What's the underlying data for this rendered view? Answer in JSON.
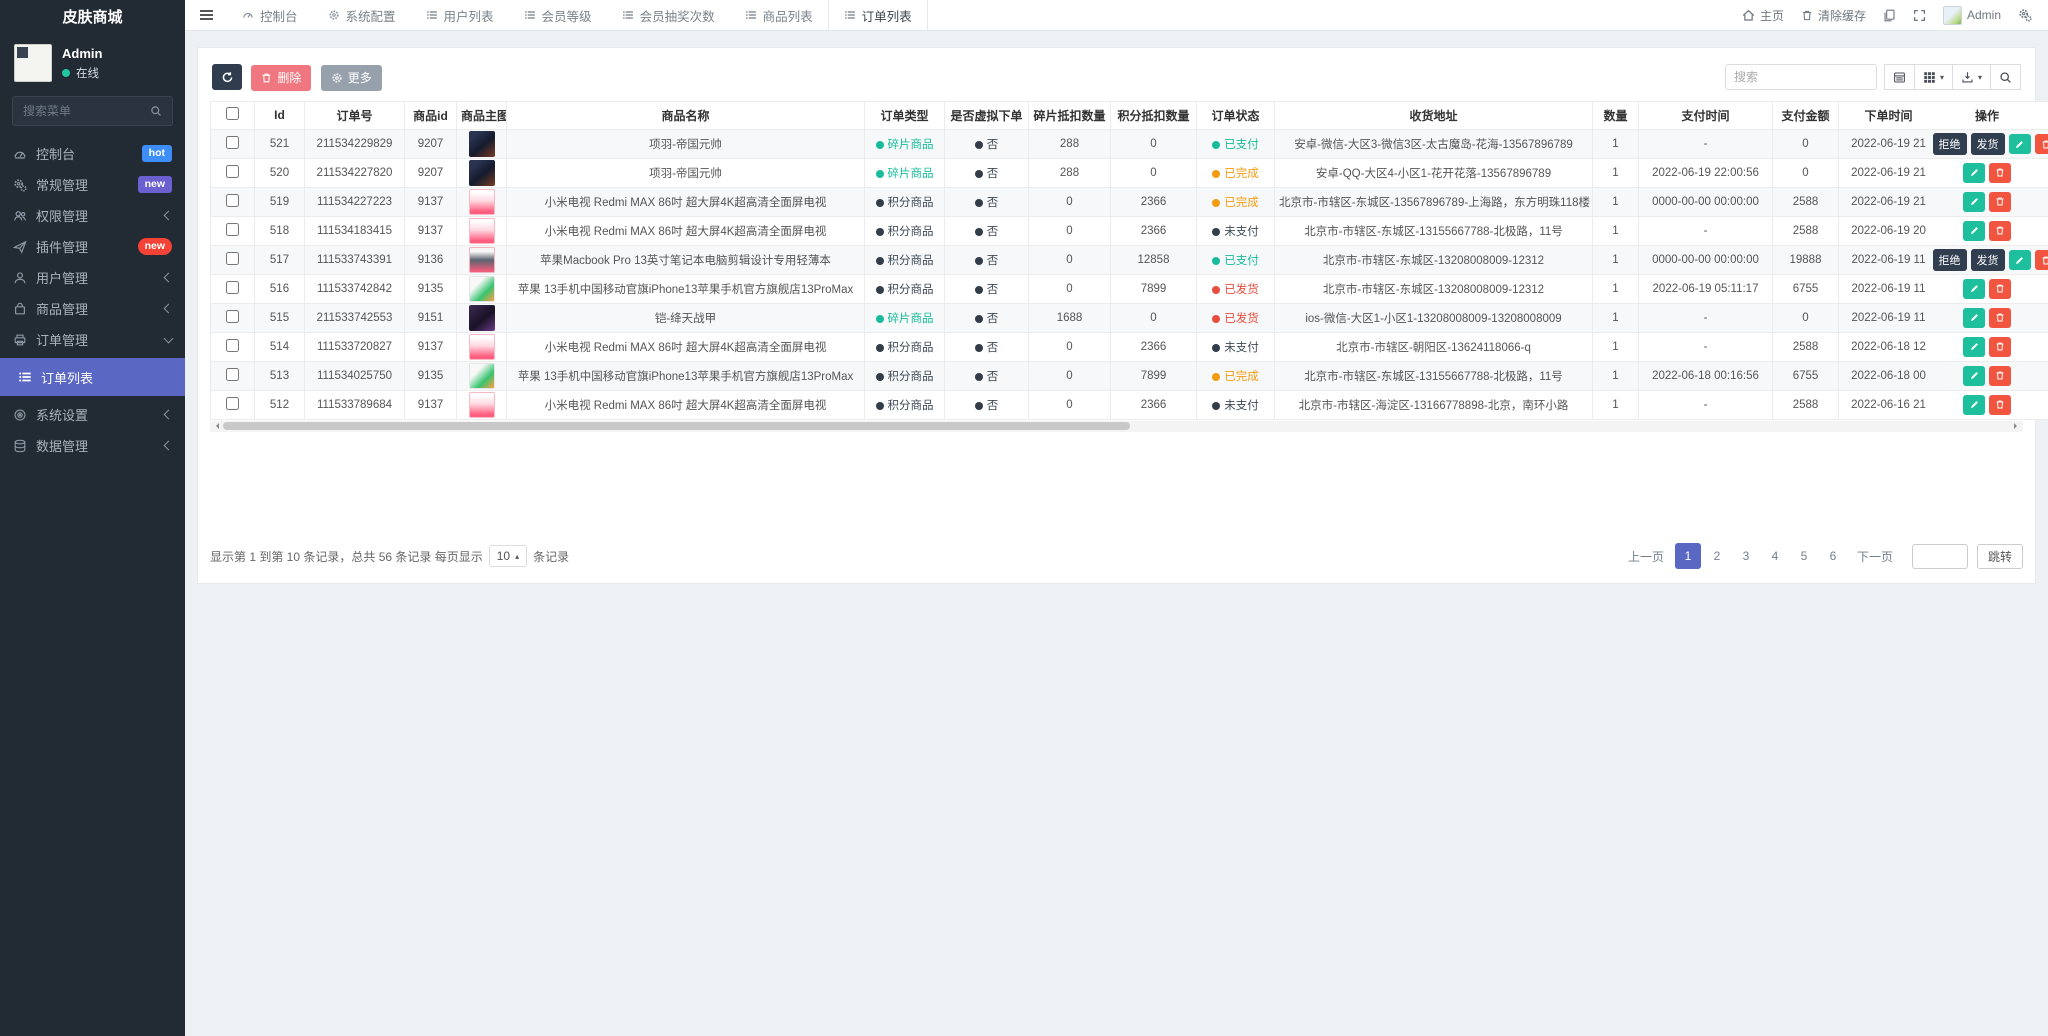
{
  "sidebar": {
    "brand": "皮肤商城",
    "user": {
      "name": "Admin",
      "status": "在线"
    },
    "search_placeholder": "搜索菜单",
    "items": [
      {
        "label": "控制台",
        "icon": "dashboard-icon",
        "badge": "hot"
      },
      {
        "label": "常规管理",
        "icon": "gears-icon",
        "badge": "new"
      },
      {
        "label": "权限管理",
        "icon": "users-icon"
      },
      {
        "label": "插件管理",
        "icon": "paper-plane-icon",
        "badge": "new"
      },
      {
        "label": "用户管理",
        "icon": "user-icon"
      },
      {
        "label": "商品管理",
        "icon": "bag-icon"
      },
      {
        "label": "订单管理",
        "icon": "printer-icon"
      },
      {
        "label": "订单列表",
        "icon": "list-icon",
        "active": true
      },
      {
        "label": "系统设置",
        "icon": "settings-icon"
      },
      {
        "label": "数据管理",
        "icon": "database-icon"
      }
    ]
  },
  "navbar": {
    "tabs": [
      {
        "label": "控制台"
      },
      {
        "label": "系统配置"
      },
      {
        "label": "用户列表"
      },
      {
        "label": "会员等级"
      },
      {
        "label": "会员抽奖次数"
      },
      {
        "label": "商品列表"
      },
      {
        "label": "订单列表",
        "active": true
      }
    ],
    "right": {
      "home": "主页",
      "clear_cache": "清除缓存",
      "username": "Admin"
    }
  },
  "toolbar": {
    "delete_label": "删除",
    "more_label": "更多",
    "search_placeholder": "搜索"
  },
  "table": {
    "headers": [
      "Id",
      "订单号",
      "商品id",
      "商品主图",
      "商品名称",
      "订单类型",
      "是否虚拟下单",
      "碎片抵扣数量",
      "积分抵扣数量",
      "订单状态",
      "收货地址",
      "数量",
      "支付时间",
      "支付金额",
      "下单时间",
      "操作"
    ],
    "op_labels": {
      "reject": "拒绝",
      "ship": "发货"
    },
    "rows": [
      {
        "id": "521",
        "order_no": "211534229829",
        "product_id": "9207",
        "img": "xiangyu",
        "name": "项羽-帝国元帅",
        "type": {
          "label": "碎片商品",
          "color": "green"
        },
        "virtual": {
          "label": "否",
          "color": "dark"
        },
        "frag": "288",
        "points": "0",
        "status": {
          "label": "已支付",
          "color": "green"
        },
        "address": "安卓-微信-大区3-微信3区-太古魔岛-花海-13567896789",
        "qty": "1",
        "pay_time": "-",
        "amount": "0",
        "order_time": "2022-06-19 21",
        "ops": [
          "reject",
          "ship",
          "edit",
          "delete"
        ]
      },
      {
        "id": "520",
        "order_no": "211534227820",
        "product_id": "9207",
        "img": "xiangyu",
        "name": "项羽-帝国元帅",
        "type": {
          "label": "碎片商品",
          "color": "green"
        },
        "virtual": {
          "label": "否",
          "color": "dark"
        },
        "frag": "288",
        "points": "0",
        "status": {
          "label": "已完成",
          "color": "orange"
        },
        "address": "安卓-QQ-大区4-小区1-花开花落-13567896789",
        "qty": "1",
        "pay_time": "2022-06-19 22:00:56",
        "amount": "0",
        "order_time": "2022-06-19 21",
        "ops": [
          "edit",
          "delete"
        ]
      },
      {
        "id": "519",
        "order_no": "111534227223",
        "product_id": "9137",
        "img": "tv",
        "name": "小米电视 Redmi MAX 86吋 超大屏4K超高清全面屏电视",
        "type": {
          "label": "积分商品",
          "color": "dark"
        },
        "virtual": {
          "label": "否",
          "color": "dark"
        },
        "frag": "0",
        "points": "2366",
        "status": {
          "label": "已完成",
          "color": "orange"
        },
        "address": "北京市-市辖区-东城区-13567896789-上海路，东方明珠118楼",
        "qty": "1",
        "pay_time": "0000-00-00 00:00:00",
        "amount": "2588",
        "order_time": "2022-06-19 21",
        "ops": [
          "edit",
          "delete"
        ]
      },
      {
        "id": "518",
        "order_no": "111534183415",
        "product_id": "9137",
        "img": "tv",
        "name": "小米电视 Redmi MAX 86吋 超大屏4K超高清全面屏电视",
        "type": {
          "label": "积分商品",
          "color": "dark"
        },
        "virtual": {
          "label": "否",
          "color": "dark"
        },
        "frag": "0",
        "points": "2366",
        "status": {
          "label": "未支付",
          "color": "dark"
        },
        "address": "北京市-市辖区-东城区-13155667788-北极路，11号",
        "qty": "1",
        "pay_time": "-",
        "amount": "2588",
        "order_time": "2022-06-19 20",
        "ops": [
          "edit",
          "delete"
        ]
      },
      {
        "id": "517",
        "order_no": "111533743391",
        "product_id": "9136",
        "img": "macbook",
        "name": "苹果Macbook Pro 13英寸笔记本电脑剪辑设计专用轻薄本",
        "type": {
          "label": "积分商品",
          "color": "dark"
        },
        "virtual": {
          "label": "否",
          "color": "dark"
        },
        "frag": "0",
        "points": "12858",
        "status": {
          "label": "已支付",
          "color": "green"
        },
        "address": "北京市-市辖区-东城区-13208008009-12312",
        "qty": "1",
        "pay_time": "0000-00-00 00:00:00",
        "amount": "19888",
        "order_time": "2022-06-19 11",
        "ops": [
          "reject",
          "ship",
          "edit",
          "delete"
        ]
      },
      {
        "id": "516",
        "order_no": "111533742842",
        "product_id": "9135",
        "img": "iphone",
        "name": "苹果 13手机中国移动官旗iPhone13苹果手机官方旗舰店13ProMax",
        "type": {
          "label": "积分商品",
          "color": "dark"
        },
        "virtual": {
          "label": "否",
          "color": "dark"
        },
        "frag": "0",
        "points": "7899",
        "status": {
          "label": "已发货",
          "color": "red"
        },
        "address": "北京市-市辖区-东城区-13208008009-12312",
        "qty": "1",
        "pay_time": "2022-06-19 05:11:17",
        "amount": "6755",
        "order_time": "2022-06-19 11",
        "ops": [
          "edit",
          "delete"
        ]
      },
      {
        "id": "515",
        "order_no": "211533742553",
        "product_id": "9151",
        "img": "kai",
        "name": "铠-绛天战甲",
        "type": {
          "label": "碎片商品",
          "color": "green"
        },
        "virtual": {
          "label": "否",
          "color": "dark"
        },
        "frag": "1688",
        "points": "0",
        "status": {
          "label": "已发货",
          "color": "red"
        },
        "address": "ios-微信-大区1-小区1-13208008009-13208008009",
        "qty": "1",
        "pay_time": "-",
        "amount": "0",
        "order_time": "2022-06-19 11",
        "ops": [
          "edit",
          "delete"
        ]
      },
      {
        "id": "514",
        "order_no": "111533720827",
        "product_id": "9137",
        "img": "tv",
        "name": "小米电视 Redmi MAX 86吋 超大屏4K超高清全面屏电视",
        "type": {
          "label": "积分商品",
          "color": "dark"
        },
        "virtual": {
          "label": "否",
          "color": "dark"
        },
        "frag": "0",
        "points": "2366",
        "status": {
          "label": "未支付",
          "color": "dark"
        },
        "address": "北京市-市辖区-朝阳区-13624118066-q",
        "qty": "1",
        "pay_time": "-",
        "amount": "2588",
        "order_time": "2022-06-18 12",
        "ops": [
          "edit",
          "delete"
        ]
      },
      {
        "id": "513",
        "order_no": "111534025750",
        "product_id": "9135",
        "img": "iphone",
        "name": "苹果 13手机中国移动官旗iPhone13苹果手机官方旗舰店13ProMax",
        "type": {
          "label": "积分商品",
          "color": "dark"
        },
        "virtual": {
          "label": "否",
          "color": "dark"
        },
        "frag": "0",
        "points": "7899",
        "status": {
          "label": "已完成",
          "color": "orange"
        },
        "address": "北京市-市辖区-东城区-13155667788-北极路，11号",
        "qty": "1",
        "pay_time": "2022-06-18 00:16:56",
        "amount": "6755",
        "order_time": "2022-06-18 00",
        "ops": [
          "edit",
          "delete"
        ]
      },
      {
        "id": "512",
        "order_no": "111533789684",
        "product_id": "9137",
        "img": "tv",
        "name": "小米电视 Redmi MAX 86吋 超大屏4K超高清全面屏电视",
        "type": {
          "label": "积分商品",
          "color": "dark"
        },
        "virtual": {
          "label": "否",
          "color": "dark"
        },
        "frag": "0",
        "points": "2366",
        "status": {
          "label": "未支付",
          "color": "dark"
        },
        "address": "北京市-市辖区-海淀区-13166778898-北京，南环小路",
        "qty": "1",
        "pay_time": "-",
        "amount": "2588",
        "order_time": "2022-06-16 21",
        "ops": [
          "edit",
          "delete"
        ]
      }
    ]
  },
  "pagination": {
    "info_prefix": "显示第 1 到第 10 条记录，总共 56 条记录 每页显示",
    "page_size": "10",
    "info_suffix": "条记录",
    "prev_label": "上一页",
    "next_label": "下一页",
    "pages": [
      "1",
      "2",
      "3",
      "4",
      "5",
      "6"
    ],
    "active_page": "1",
    "jump_label": "跳转"
  },
  "colors": {
    "accent_blue": "#5a68c4",
    "status_green": "#18bc9c",
    "status_orange": "#f39c12",
    "status_red": "#e74c3c",
    "status_dark": "#3e4a56",
    "badge_hot_blue": "#3d8ef8",
    "badge_new_purple": "#6c5fd0",
    "badge_new_red": "#f44336",
    "delete_button": "#f1543f",
    "edit_button": "#1dbf9d"
  }
}
